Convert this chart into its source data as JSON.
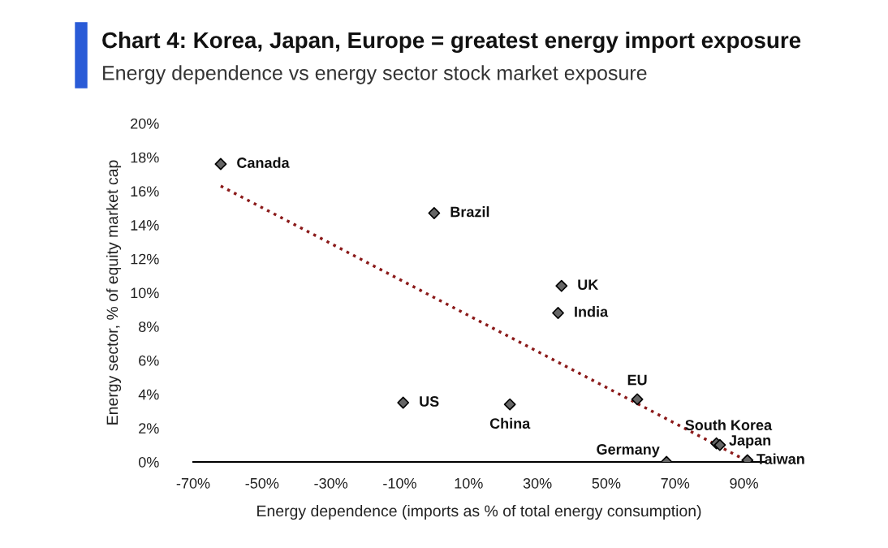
{
  "chart_data": {
    "type": "scatter",
    "title": "Chart 4: Korea, Japan, Europe = greatest energy import exposure",
    "subtitle": "Energy dependence vs energy sector stock market exposure",
    "xlabel": "Energy dependence (imports as % of total energy consumption)",
    "ylabel": "Energy sector, % of equity market cap",
    "series": [
      {
        "type": "scatter",
        "color": "#666666",
        "marker": "diamond",
        "x": [
          -62,
          0,
          37,
          36,
          59,
          -9,
          22,
          82,
          83,
          67.5,
          91
        ],
        "values": [
          17.6,
          14.7,
          10.4,
          8.8,
          3.7,
          3.5,
          3.4,
          1.1,
          1.0,
          0,
          0.1
        ]
      },
      {
        "type": "line",
        "color": "#8b1a1a",
        "line_style": "dotted",
        "x": [
          -62,
          91
        ],
        "values": [
          16.3,
          0.05
        ]
      }
    ],
    "annotations": [
      {
        "text": "Canada",
        "x": -62,
        "y": 17.6
      },
      {
        "text": "Brazil",
        "x": 0,
        "y": 14.7
      },
      {
        "text": "UK",
        "x": 37,
        "y": 10.4
      },
      {
        "text": "India",
        "x": 36,
        "y": 8.8
      },
      {
        "text": "EU",
        "x": 59,
        "y": 3.7
      },
      {
        "text": "US",
        "x": -9,
        "y": 3.5
      },
      {
        "text": "China",
        "x": 22,
        "y": 3.4
      },
      {
        "text": "South Korea",
        "x": 82,
        "y": 1.1
      },
      {
        "text": "Japan",
        "x": 83,
        "y": 1.0
      },
      {
        "text": "Germany",
        "x": 67.5,
        "y": 0
      },
      {
        "text": "Taiwan",
        "x": 91,
        "y": 0.1
      }
    ],
    "xlim": [
      -70,
      96
    ],
    "ylim": [
      0,
      20
    ],
    "xticks": [
      {
        "value": -70,
        "label": "-70%"
      },
      {
        "value": -50,
        "label": "-50%"
      },
      {
        "value": -30,
        "label": "-30%"
      },
      {
        "value": -10,
        "label": "-10%"
      },
      {
        "value": 10,
        "label": "10%"
      },
      {
        "value": 30,
        "label": "30%"
      },
      {
        "value": 50,
        "label": "50%"
      },
      {
        "value": 70,
        "label": "70%"
      },
      {
        "value": 90,
        "label": "90%"
      }
    ],
    "yticks": [
      {
        "value": 0,
        "label": "0%"
      },
      {
        "value": 2,
        "label": "2%"
      },
      {
        "value": 4,
        "label": "4%"
      },
      {
        "value": 6,
        "label": "6%"
      },
      {
        "value": 8,
        "label": "8%"
      },
      {
        "value": 10,
        "label": "10%"
      },
      {
        "value": 12,
        "label": "12%"
      },
      {
        "value": 14,
        "label": "14%"
      },
      {
        "value": 16,
        "label": "16%"
      },
      {
        "value": 18,
        "label": "18%"
      },
      {
        "value": 20,
        "label": "20%"
      }
    ]
  }
}
